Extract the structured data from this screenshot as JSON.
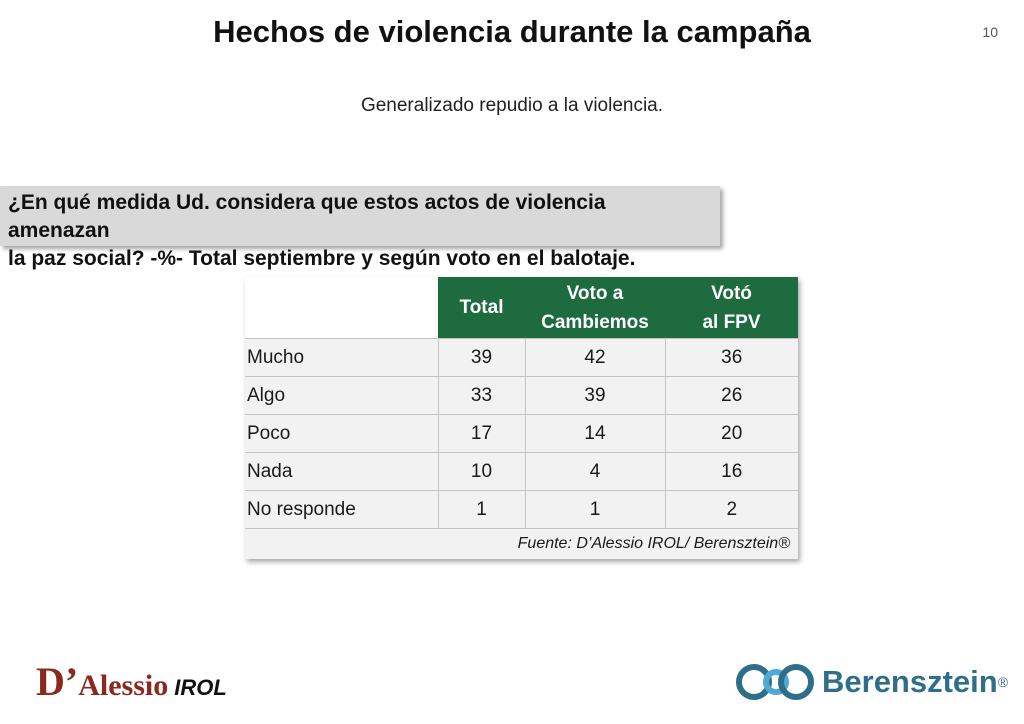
{
  "slide": {
    "title": "Hechos de violencia durante la campaña",
    "page_number": "10",
    "subtitle": "Generalizado repudio a la violencia.",
    "question_line1": "¿En qué medida Ud. considera que estos actos de violencia amenazan",
    "question_line2": "la paz social? -%- Total septiembre y según voto en el balotaje."
  },
  "table": {
    "headers": [
      {
        "line1": "Total",
        "line2": ""
      },
      {
        "line1": "Voto a",
        "line2": "Cambiemos"
      },
      {
        "line1": "Votó",
        "line2": "al FPV"
      }
    ],
    "rows": [
      {
        "label": "Mucho",
        "values": [
          "39",
          "42",
          "36"
        ]
      },
      {
        "label": "Algo",
        "values": [
          "33",
          "39",
          "26"
        ]
      },
      {
        "label": "Poco",
        "values": [
          "17",
          "14",
          "20"
        ]
      },
      {
        "label": "Nada",
        "values": [
          "10",
          "4",
          "16"
        ]
      },
      {
        "label": "No responde",
        "values": [
          "1",
          "1",
          "2"
        ]
      }
    ],
    "source": "Fuente: D’Alessio IROL/ Berensztein®"
  },
  "logos": {
    "left_big": "D’",
    "left_name": "Alessio",
    "left_suffix": "IROL",
    "right_name": "Berensztein",
    "right_mark": "®"
  },
  "colors": {
    "header_green": "#1e6b40",
    "berensztein_blue": "#2f6e8a",
    "dalessio_red": "#8a2a1f"
  }
}
